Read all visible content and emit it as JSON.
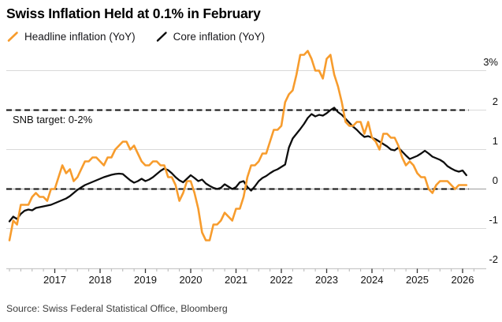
{
  "title": "Swiss Inflation Held at 0.1% in February",
  "legend": [
    {
      "label": "Headline inflation (YoY)",
      "color": "#F79C2D",
      "icon": "slash-line-icon"
    },
    {
      "label": "Core inflation (YoY)",
      "color": "#0d0d0d",
      "icon": "slash-line-icon"
    }
  ],
  "annotation": "SNB target: 0-2%",
  "source": "Source: Swiss Federal Statistical Office, Bloomberg",
  "colors": {
    "headline": "#F79C2D",
    "core": "#0d0d0d",
    "grid": "#d9d9d9",
    "zero_grid": "#9b9b9b",
    "axis": "#c9c9c9",
    "major_tick": "#333333",
    "minor_tick": "#b5b5b5",
    "dashed_reference": "#111111",
    "background": "#ffffff"
  },
  "chart_data": {
    "type": "line",
    "title": "Swiss Inflation Held at 0.1% in February",
    "frequency": "monthly",
    "x_start": "2016-01",
    "x_end": "2026-02",
    "x_tick_labels": [
      "2017",
      "2018",
      "2019",
      "2020",
      "2021",
      "2022",
      "2023",
      "2024",
      "2025",
      "2026"
    ],
    "y_tick_values": [
      3,
      2,
      1,
      0,
      -1,
      -2
    ],
    "y_tick_labels": [
      "3%",
      "2",
      "1",
      "0",
      "-1",
      "-2"
    ],
    "ylim": [
      -2,
      3.5
    ],
    "grid": "horizontal",
    "legend_position": "top-left",
    "dashed_reference_levels": [
      2,
      0
    ],
    "annotation": "SNB target: 0-2%",
    "series": [
      {
        "name": "Headline inflation (YoY)",
        "color": "#F79C2D",
        "values": [
          -1.3,
          -0.8,
          -0.9,
          -0.4,
          -0.4,
          -0.4,
          -0.2,
          -0.1,
          -0.2,
          -0.2,
          -0.3,
          0.0,
          0.0,
          0.3,
          0.6,
          0.4,
          0.5,
          0.2,
          0.3,
          0.5,
          0.7,
          0.7,
          0.8,
          0.8,
          0.7,
          0.6,
          0.8,
          0.8,
          1.0,
          1.1,
          1.2,
          1.2,
          1.0,
          1.1,
          0.9,
          0.7,
          0.6,
          0.6,
          0.7,
          0.7,
          0.6,
          0.6,
          0.3,
          0.3,
          0.1,
          -0.3,
          -0.1,
          0.2,
          0.2,
          -0.1,
          -0.5,
          -1.1,
          -1.3,
          -1.3,
          -0.9,
          -0.9,
          -0.8,
          -0.6,
          -0.7,
          -0.8,
          -0.5,
          -0.5,
          -0.2,
          0.3,
          0.6,
          0.6,
          0.7,
          0.9,
          0.9,
          1.2,
          1.5,
          1.5,
          1.6,
          2.2,
          2.4,
          2.5,
          2.9,
          3.4,
          3.4,
          3.5,
          3.3,
          3.0,
          3.0,
          2.8,
          3.3,
          3.4,
          2.9,
          2.6,
          2.2,
          1.7,
          1.6,
          1.6,
          1.7,
          1.7,
          1.4,
          1.7,
          1.3,
          1.2,
          1.0,
          1.4,
          1.4,
          1.3,
          1.3,
          1.1,
          0.8,
          0.6,
          0.7,
          0.6,
          0.4,
          0.3,
          0.3,
          0.0,
          -0.1,
          0.1,
          0.2,
          0.2,
          0.2,
          0.1,
          0.0,
          0.1,
          0.1,
          0.1
        ]
      },
      {
        "name": "Core inflation (YoY)",
        "color": "#0d0d0d",
        "values": [
          -0.82,
          -0.7,
          -0.76,
          -0.63,
          -0.55,
          -0.52,
          -0.54,
          -0.48,
          -0.46,
          -0.44,
          -0.42,
          -0.4,
          -0.36,
          -0.32,
          -0.28,
          -0.24,
          -0.18,
          -0.1,
          -0.02,
          0.04,
          0.1,
          0.14,
          0.18,
          0.22,
          0.26,
          0.3,
          0.33,
          0.36,
          0.38,
          0.39,
          0.38,
          0.3,
          0.22,
          0.16,
          0.2,
          0.26,
          0.2,
          0.24,
          0.3,
          0.38,
          0.46,
          0.52,
          0.48,
          0.4,
          0.3,
          0.22,
          0.17,
          0.26,
          0.35,
          0.28,
          0.2,
          0.24,
          0.14,
          0.08,
          0.03,
          0.0,
          0.03,
          0.12,
          0.06,
          0.0,
          0.05,
          0.17,
          0.2,
          0.05,
          -0.04,
          0.07,
          0.2,
          0.28,
          0.33,
          0.4,
          0.46,
          0.5,
          0.56,
          0.62,
          1.05,
          1.28,
          1.4,
          1.52,
          1.65,
          1.8,
          1.9,
          1.84,
          1.88,
          1.86,
          1.92,
          2.0,
          2.06,
          1.95,
          1.88,
          1.78,
          1.68,
          1.58,
          1.5,
          1.4,
          1.32,
          1.34,
          1.3,
          1.26,
          1.2,
          1.14,
          1.08,
          1.0,
          0.98,
          1.05,
          0.95,
          0.85,
          0.76,
          0.8,
          0.84,
          0.9,
          0.97,
          0.9,
          0.82,
          0.78,
          0.74,
          0.68,
          0.58,
          0.52,
          0.47,
          0.44,
          0.47,
          0.35
        ]
      }
    ]
  }
}
